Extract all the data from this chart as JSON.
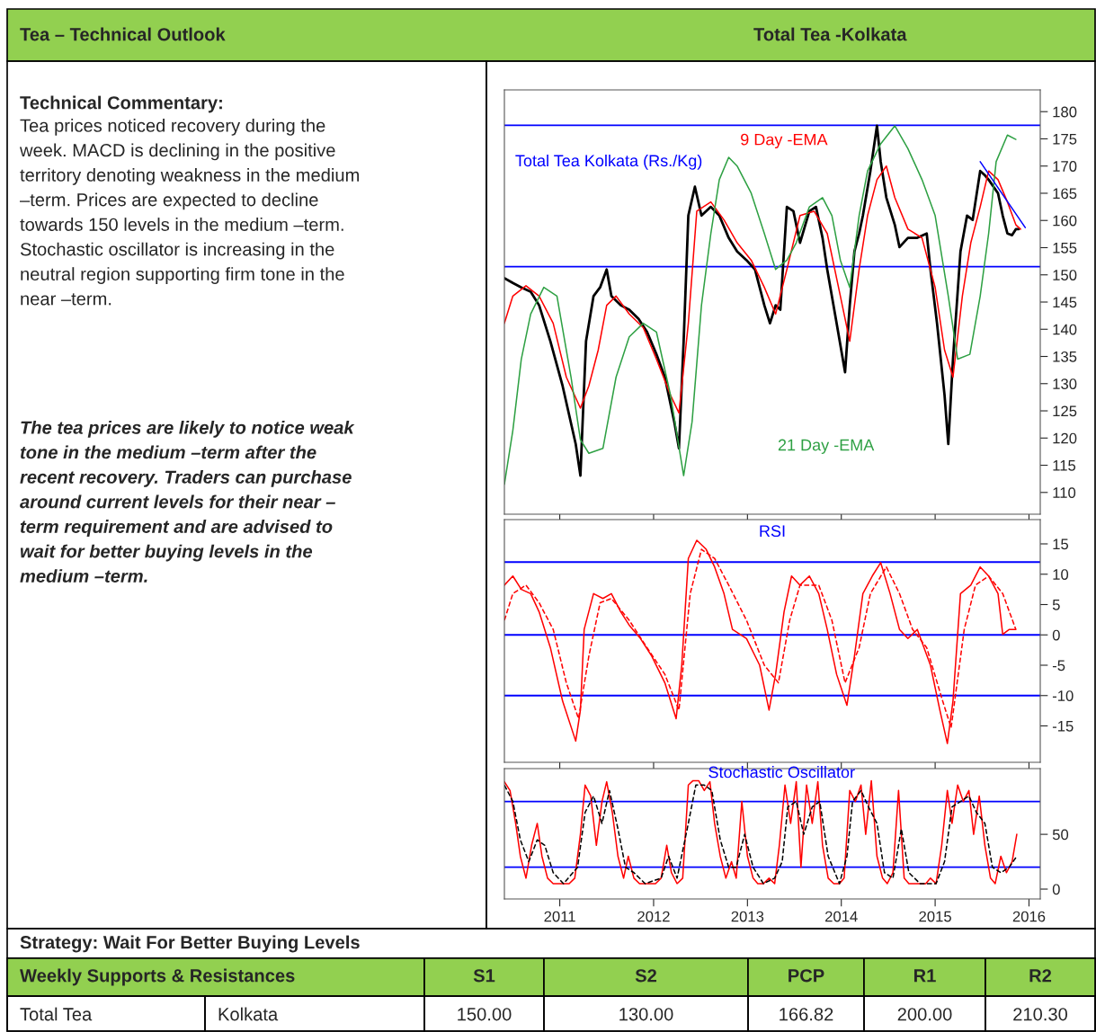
{
  "chart_data": [
    {
      "type": "other",
      "title": "Tea – Technical Outlook",
      "annotations": [
        "Technical Commentary:",
        "Tea prices noticed recovery during the\nweek. MACD is declining in the positive\nterritory denoting weakness in the medium\n–term. Prices are expected to decline\ntowards 150 levels in the medium –term.\nStochastic oscillator is increasing in the\nneutral region supporting firm tone in the\nnear –term.",
        "The tea prices are likely to notice weak\ntone in the medium –term after the\nrecent recovery. Traders can purchase\naround current levels for their near –\nterm requirement and are advised to\nwait for better buying levels in the\nmedium –term.",
        "Strategy: Wait For Better Buying Levels",
        "Weekly Supports & Resistances",
        "S1",
        "S2",
        "PCP",
        "R1",
        "R2",
        "Total Tea",
        "Kolkata",
        "150.00",
        "130.00",
        "166.82",
        "200.00",
        "210.30"
      ]
    },
    {
      "type": "line",
      "title": "Total Tea -Kolkata",
      "annotations": [
        "Total Tea Kolkata (Rs./Kg)"
      ],
      "xlim": [
        2010.41,
        2016.12
      ],
      "xticks": [
        2011,
        2012,
        2013,
        2014,
        2015,
        2016
      ],
      "ylim": [
        106,
        184
      ],
      "yticks": [
        110,
        115,
        120,
        125,
        130,
        135,
        140,
        145,
        150,
        155,
        160,
        165,
        170,
        175,
        180
      ],
      "tick_labels": "y",
      "legend": false,
      "grid": false,
      "ref_lines": [
        {
          "axis": "y",
          "value": 177.5,
          "color": "#0000ff"
        },
        {
          "axis": "y",
          "value": 151.5,
          "color": "#0000ff"
        }
      ],
      "series": [
        {
          "color": "#000000",
          "x": [
            2010.41,
            2010.5,
            2010.59,
            2010.69,
            2010.78,
            2010.9,
            2011.03,
            2011.17,
            2011.22,
            2011.24,
            2011.28,
            2011.36,
            2011.43,
            2011.5,
            2011.55,
            2011.65,
            2011.74,
            2011.84,
            2011.93,
            2012.03,
            2012.12,
            2012.22,
            2012.27,
            2012.32,
            2012.37,
            2012.44,
            2012.51,
            2012.61,
            2012.7,
            2012.8,
            2012.89,
            2012.99,
            2013.08,
            2013.18,
            2013.24,
            2013.3,
            2013.35,
            2013.42,
            2013.49,
            2013.56,
            2013.66,
            2013.73,
            2013.8,
            2013.85,
            2013.95,
            2014.04,
            2014.09,
            2014.14,
            2014.19,
            2014.23,
            2014.31,
            2014.38,
            2014.42,
            2014.48,
            2014.57,
            2014.62,
            2014.71,
            2014.81,
            2014.91,
            2014.95,
            2015.02,
            2015.1,
            2015.14,
            2015.19,
            2015.27,
            2015.34,
            2015.4,
            2015.48,
            2015.53,
            2015.57,
            2015.67,
            2015.72,
            2015.77,
            2015.82,
            2015.86,
            2015.89
          ],
          "values": [
            149.4,
            148.5,
            147.7,
            146.9,
            144.4,
            137.8,
            129.6,
            118.9,
            113.1,
            121.4,
            137.8,
            146.1,
            147.7,
            151,
            146.1,
            144.4,
            143.6,
            141.9,
            139.5,
            135.4,
            131.2,
            123,
            118.1,
            137.8,
            160.9,
            166.2,
            160.9,
            162.5,
            160.9,
            156.8,
            154.3,
            152.7,
            151,
            144.4,
            141.1,
            144.4,
            143.6,
            162.5,
            161.7,
            155.9,
            161.7,
            162.5,
            156.8,
            151,
            141.1,
            132.1,
            144.4,
            154.3,
            157.6,
            160.9,
            169.1,
            177.4,
            170.8,
            164.2,
            159.2,
            155.1,
            156.8,
            156.8,
            157.6,
            151,
            141.1,
            127.9,
            118.9,
            134.5,
            154.3,
            160.9,
            160.1,
            169.1,
            168.3,
            167.5,
            165,
            160.9,
            157.6,
            157.3,
            158.4,
            158.4
          ]
        },
        {
          "name": "9 Day -EMA",
          "color": "#ff0000",
          "x": [
            2010.41,
            2010.5,
            2010.64,
            2010.78,
            2010.93,
            2011.07,
            2011.22,
            2011.31,
            2011.41,
            2011.5,
            2011.6,
            2011.74,
            2011.89,
            2012.03,
            2012.18,
            2012.27,
            2012.37,
            2012.46,
            2012.61,
            2012.75,
            2012.89,
            2013.04,
            2013.18,
            2013.3,
            2013.42,
            2013.56,
            2013.71,
            2013.85,
            2013.99,
            2014.09,
            2014.19,
            2014.28,
            2014.38,
            2014.48,
            2014.57,
            2014.71,
            2014.86,
            2015.0,
            2015.1,
            2015.19,
            2015.29,
            2015.38,
            2015.48,
            2015.57,
            2015.67,
            2015.77,
            2015.86,
            2015.91
          ],
          "values": [
            141.1,
            146.1,
            148,
            146.1,
            141.1,
            131.2,
            125.5,
            129.6,
            136.2,
            144.4,
            146.1,
            142.8,
            140.3,
            134.5,
            127.9,
            124.6,
            141.1,
            161.7,
            163.4,
            160.1,
            155.9,
            152.7,
            147.7,
            142.8,
            151,
            160.9,
            161.7,
            157.6,
            146.1,
            137.8,
            151,
            160.9,
            167.5,
            170,
            164.2,
            158.4,
            156.8,
            147.7,
            136.2,
            131.2,
            146.1,
            155.9,
            162.5,
            169.1,
            167.5,
            163.4,
            159.2,
            158.4
          ]
        },
        {
          "name": "21 Day -EMA",
          "color": "#2ea043",
          "x": [
            2010.41,
            2010.5,
            2010.59,
            2010.69,
            2010.83,
            2010.97,
            2011.12,
            2011.22,
            2011.31,
            2011.46,
            2011.6,
            2011.74,
            2011.89,
            2012.03,
            2012.18,
            2012.32,
            2012.41,
            2012.51,
            2012.61,
            2012.7,
            2012.8,
            2012.89,
            2013.04,
            2013.18,
            2013.3,
            2013.42,
            2013.52,
            2013.66,
            2013.8,
            2013.9,
            2013.99,
            2014.09,
            2014.19,
            2014.28,
            2014.42,
            2014.57,
            2014.71,
            2014.86,
            2015.0,
            2015.14,
            2015.24,
            2015.37,
            2015.48,
            2015.57,
            2015.65,
            2015.77,
            2015.86
          ],
          "values": [
            111.5,
            121.4,
            134.5,
            142.8,
            147.7,
            146.1,
            131.2,
            119.7,
            117.2,
            118.1,
            131.2,
            138.6,
            141.1,
            139.5,
            127.9,
            113.1,
            123,
            144.4,
            157.6,
            167.5,
            171.6,
            170,
            165,
            157.6,
            151,
            152.7,
            155.9,
            162.5,
            164.2,
            160.9,
            152.7,
            147.7,
            160.9,
            169.1,
            174.1,
            177.4,
            173.2,
            167.5,
            160.9,
            146.1,
            134.5,
            135.4,
            146.1,
            157.6,
            170.8,
            175.7,
            174.9
          ]
        },
        {
          "color": "#0000ff",
          "x": [
            2015.48,
            2015.96
          ],
          "values": [
            170.8,
            158.7
          ]
        }
      ]
    },
    {
      "type": "line",
      "title": "RSI",
      "xlim": [
        2010.41,
        2016.12
      ],
      "xticks": [
        2011,
        2012,
        2013,
        2014,
        2015,
        2016
      ],
      "ylim": [
        -21,
        19
      ],
      "yticks": [
        -15,
        -10,
        -5,
        0,
        5,
        10,
        15
      ],
      "tick_labels": "y",
      "legend": false,
      "grid": false,
      "ref_lines": [
        {
          "axis": "y",
          "value": 12,
          "color": "#0000ff"
        },
        {
          "axis": "y",
          "value": 0,
          "color": "#0000ff"
        },
        {
          "axis": "y",
          "value": -10,
          "color": "#0000ff"
        }
      ],
      "series": [
        {
          "color": "#ff0000",
          "line_style": "solid",
          "x": [
            2010.41,
            2010.5,
            2010.59,
            2010.69,
            2010.78,
            2010.9,
            2011.03,
            2011.17,
            2011.22,
            2011.26,
            2011.36,
            2011.46,
            2011.55,
            2011.65,
            2011.74,
            2011.86,
            2011.98,
            2012.12,
            2012.24,
            2012.3,
            2012.37,
            2012.46,
            2012.56,
            2012.65,
            2012.75,
            2012.84,
            2012.99,
            2013.13,
            2013.23,
            2013.3,
            2013.39,
            2013.47,
            2013.56,
            2013.66,
            2013.76,
            2013.85,
            2013.95,
            2014.06,
            2014.14,
            2014.23,
            2014.33,
            2014.42,
            2014.52,
            2014.62,
            2014.71,
            2014.81,
            2014.95,
            2015.05,
            2015.13,
            2015.19,
            2015.27,
            2015.38,
            2015.48,
            2015.57,
            2015.67,
            2015.72,
            2015.79,
            2015.86
          ],
          "values": [
            8.2,
            9.7,
            7.5,
            6.8,
            3.8,
            -2.1,
            -10.9,
            -17.5,
            -12.4,
            0.9,
            6.8,
            6,
            6.8,
            3.8,
            1.6,
            -0.6,
            -3.5,
            -7.9,
            -13.8,
            -5,
            12.6,
            15.6,
            14.1,
            11.2,
            6.8,
            0.9,
            -0.6,
            -5,
            -12.4,
            -6.5,
            3.8,
            9.7,
            8.2,
            9.7,
            6.8,
            0.9,
            -6.5,
            -11.6,
            -3.5,
            6.8,
            9.7,
            11.9,
            6.8,
            0.9,
            -0.6,
            0.9,
            -5,
            -12.4,
            -17.9,
            -10.9,
            6.8,
            8.2,
            11.2,
            9.7,
            6.8,
            0.1,
            0.9,
            0.9
          ]
        },
        {
          "color": "#ff0000",
          "line_style": "dashed",
          "x": [
            2010.41,
            2010.5,
            2010.64,
            2010.78,
            2010.93,
            2011.07,
            2011.2,
            2011.31,
            2011.43,
            2011.55,
            2011.74,
            2011.93,
            2012.12,
            2012.27,
            2012.39,
            2012.51,
            2012.65,
            2012.8,
            2012.99,
            2013.18,
            2013.33,
            2013.45,
            2013.56,
            2013.76,
            2013.9,
            2014.04,
            2014.19,
            2014.31,
            2014.48,
            2014.62,
            2014.76,
            2014.91,
            2015.08,
            2015.17,
            2015.31,
            2015.43,
            2015.57,
            2015.72,
            2015.86
          ],
          "values": [
            2.4,
            6.8,
            8.2,
            5.3,
            0.9,
            -7.9,
            -13.8,
            -3.5,
            5.3,
            6,
            2.4,
            -2.1,
            -6.5,
            -12.4,
            6.8,
            14.1,
            12.6,
            8.2,
            2.4,
            -5,
            -7.9,
            2.4,
            8.2,
            8.2,
            2.4,
            -7.9,
            -2.1,
            6.8,
            11.2,
            6.8,
            0.9,
            -2.1,
            -10.9,
            -15.3,
            0.9,
            8.2,
            9.7,
            6.8,
            0.9
          ]
        }
      ]
    },
    {
      "type": "line",
      "title": "Stochastic Oscillator",
      "xlim": [
        2010.41,
        2016.12
      ],
      "xticks": [
        2011,
        2012,
        2013,
        2014,
        2015,
        2016
      ],
      "ylim": [
        -9,
        110
      ],
      "yticks": [
        0,
        50
      ],
      "legend": false,
      "grid": false,
      "ref_lines": [
        {
          "axis": "y",
          "value": 80,
          "color": "#0000ff"
        },
        {
          "axis": "y",
          "value": 20,
          "color": "#0000ff"
        }
      ],
      "series": [
        {
          "color": "#ff0000",
          "line_style": "solid",
          "x": [
            2010.41,
            2010.47,
            2010.53,
            2010.58,
            2010.64,
            2010.7,
            2010.76,
            2010.81,
            2010.87,
            2010.93,
            2010.99,
            2011.1,
            2011.16,
            2011.22,
            2011.27,
            2011.33,
            2011.39,
            2011.45,
            2011.5,
            2011.56,
            2011.62,
            2011.68,
            2011.73,
            2011.79,
            2011.85,
            2011.91,
            2012.02,
            2012.08,
            2012.14,
            2012.19,
            2012.25,
            2012.31,
            2012.37,
            2012.42,
            2012.48,
            2012.54,
            2012.6,
            2012.65,
            2012.71,
            2012.77,
            2012.83,
            2012.88,
            2012.94,
            2013.0,
            2013.06,
            2013.11,
            2013.17,
            2013.23,
            2013.29,
            2013.34,
            2013.4,
            2013.46,
            2013.52,
            2013.57,
            2013.63,
            2013.69,
            2013.75,
            2013.8,
            2013.86,
            2013.92,
            2013.98,
            2014.03,
            2014.09,
            2014.15,
            2014.21,
            2014.26,
            2014.32,
            2014.38,
            2014.44,
            2014.49,
            2014.55,
            2014.61,
            2014.67,
            2014.72,
            2014.78,
            2014.9,
            2014.95,
            2015.01,
            2015.07,
            2015.13,
            2015.18,
            2015.24,
            2015.3,
            2015.36,
            2015.41,
            2015.47,
            2015.53,
            2015.59,
            2015.64,
            2015.7,
            2015.76,
            2015.82,
            2015.87
          ],
          "values": [
            98,
            90,
            60,
            30,
            10,
            40,
            60,
            30,
            10,
            5,
            5,
            5,
            10,
            50,
            95,
            85,
            40,
            80,
            98,
            70,
            30,
            10,
            30,
            10,
            5,
            5,
            5,
            10,
            40,
            15,
            5,
            10,
            95,
            99,
            99,
            90,
            98,
            60,
            30,
            10,
            25,
            10,
            80,
            30,
            10,
            5,
            5,
            10,
            5,
            40,
            95,
            60,
            98,
            20,
            95,
            60,
            98,
            40,
            10,
            5,
            5,
            10,
            90,
            80,
            95,
            50,
            99,
            30,
            10,
            5,
            15,
            90,
            10,
            5,
            5,
            5,
            10,
            5,
            40,
            90,
            60,
            95,
            80,
            90,
            50,
            85,
            40,
            10,
            5,
            30,
            15,
            25,
            50
          ]
        },
        {
          "color": "#000000",
          "line_style": "dashed",
          "x": [
            2010.41,
            2010.5,
            2010.58,
            2010.67,
            2010.76,
            2010.84,
            2010.93,
            2011.04,
            2011.19,
            2011.27,
            2011.36,
            2011.45,
            2011.53,
            2011.62,
            2011.7,
            2011.79,
            2011.91,
            2012.08,
            2012.16,
            2012.25,
            2012.37,
            2012.45,
            2012.54,
            2012.62,
            2012.71,
            2012.8,
            2012.88,
            2012.97,
            2013.06,
            2013.17,
            2013.29,
            2013.37,
            2013.43,
            2013.52,
            2013.6,
            2013.69,
            2013.77,
            2013.86,
            2013.98,
            2014.06,
            2014.12,
            2014.21,
            2014.29,
            2014.38,
            2014.46,
            2014.55,
            2014.64,
            2014.72,
            2014.84,
            2015.01,
            2015.1,
            2015.18,
            2015.27,
            2015.36,
            2015.44,
            2015.53,
            2015.61,
            2015.7,
            2015.79,
            2015.87
          ],
          "values": [
            95,
            80,
            45,
            25,
            45,
            40,
            15,
            5,
            20,
            70,
            85,
            60,
            90,
            55,
            20,
            15,
            5,
            10,
            30,
            10,
            60,
            95,
            95,
            90,
            45,
            20,
            20,
            50,
            20,
            5,
            10,
            25,
            75,
            80,
            50,
            75,
            80,
            30,
            5,
            30,
            80,
            90,
            75,
            60,
            15,
            10,
            55,
            15,
            5,
            5,
            25,
            75,
            80,
            85,
            70,
            60,
            20,
            15,
            20,
            30
          ]
        }
      ]
    }
  ]
}
